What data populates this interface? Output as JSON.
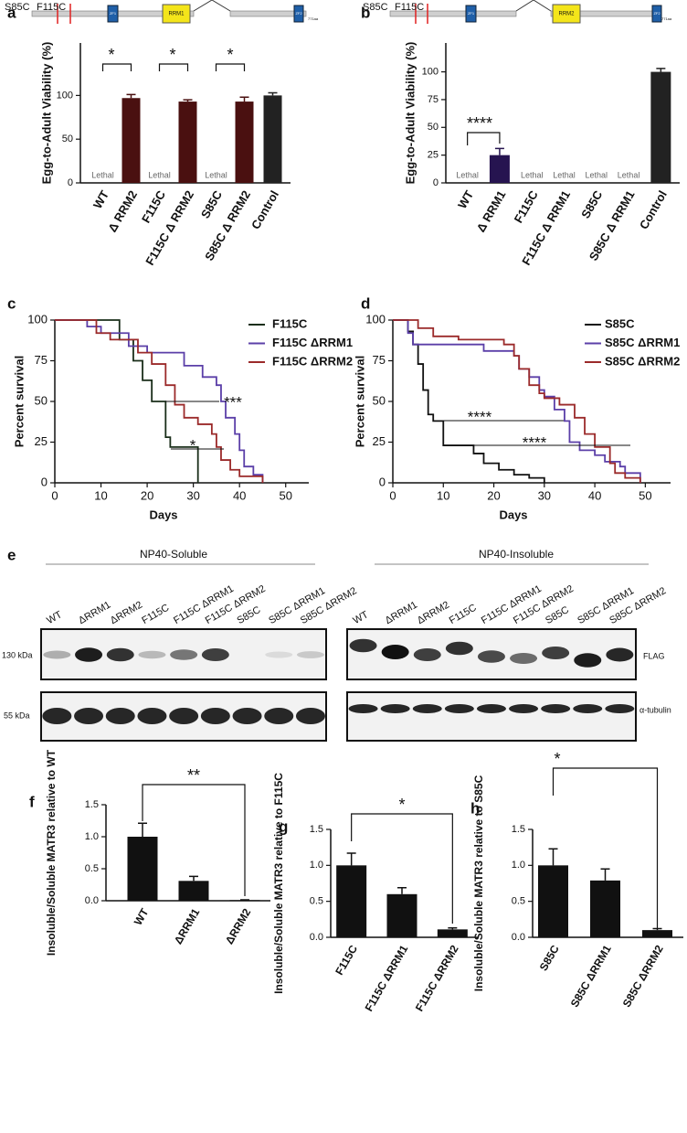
{
  "schematics": [
    {
      "mutations": [
        "S85C",
        "F115C"
      ],
      "domains": [
        "ZF1",
        "RRM1",
        "ZF2"
      ],
      "length": "771aa"
    },
    {
      "mutations": [
        "S85C",
        "F115C"
      ],
      "domains": [
        "ZF1",
        "RRM2",
        "ZF2"
      ],
      "length": "771aa"
    }
  ],
  "blot": {
    "panel": "e",
    "groups": [
      "NP40-Soluble",
      "NP40-Insoluble"
    ],
    "lanes": [
      "WT",
      "ΔRRM1",
      "ΔRRM2",
      "F115C",
      "F115C ΔRRM1",
      "F115C ΔRRM2",
      "S85C",
      "S85C ΔRRM1",
      "S85C ΔRRM2"
    ],
    "markers": [
      "130 kDa",
      "55 kDa"
    ],
    "antibodies": [
      "FLAG",
      "α-tubulin"
    ]
  },
  "chart_data": [
    {
      "panel": "a",
      "type": "bar",
      "ylabel": "Egg-to-Adult Viability (%)",
      "categories": [
        "WT",
        "Δ RRM2",
        "F115C",
        "F115C Δ RRM2",
        "S85C",
        "S85C Δ RRM2",
        "Control"
      ],
      "values": [
        null,
        97,
        null,
        93,
        null,
        93,
        100
      ],
      "errors": [
        null,
        4,
        null,
        2,
        null,
        5,
        3
      ],
      "colors": [
        "#4a1010",
        "#4a1010",
        "#4a1010",
        "#4a1010",
        "#4a1010",
        "#4a1010",
        "#222222"
      ],
      "bar_labels": [
        "Lethal",
        null,
        "Lethal",
        null,
        "Lethal",
        null,
        null
      ],
      "annotations": [
        "*",
        "*",
        "*"
      ],
      "ylim": [
        0,
        160
      ],
      "yticks": [
        0,
        50,
        100
      ]
    },
    {
      "panel": "b",
      "type": "bar",
      "ylabel": "Egg-to-Adult Viability (%)",
      "categories": [
        "WT",
        "Δ RRM1",
        "F115C",
        "F115C Δ RRM1",
        "S85C",
        "S85C Δ RRM1",
        "Control"
      ],
      "values": [
        null,
        25,
        null,
        null,
        null,
        null,
        100
      ],
      "errors": [
        null,
        6,
        null,
        null,
        null,
        null,
        3
      ],
      "colors": [
        "#261450",
        "#261450",
        "#261450",
        "#261450",
        "#261450",
        "#261450",
        "#222222"
      ],
      "bar_labels": [
        "Lethal",
        null,
        "Lethal",
        "Lethal",
        "Lethal",
        "Lethal",
        null
      ],
      "annotations": [
        "****"
      ],
      "ylim": [
        0,
        126
      ],
      "yticks": [
        0,
        25,
        50,
        75,
        100
      ]
    },
    {
      "panel": "c",
      "type": "line",
      "xlabel": "Days",
      "ylabel": "Percent survival",
      "xlim": [
        0,
        55
      ],
      "xticks": [
        0,
        10,
        20,
        30,
        40,
        50
      ],
      "ylim": [
        0,
        100
      ],
      "yticks": [
        0,
        25,
        50,
        75,
        100
      ],
      "legend": "upper right",
      "annotations": [
        "***",
        "*"
      ],
      "series": [
        {
          "name": "F115C",
          "color": "#1a2e1a",
          "x": [
            0,
            14,
            17,
            19,
            21,
            24,
            25,
            31
          ],
          "values": [
            100,
            88,
            75,
            63,
            50,
            28,
            22,
            0
          ]
        },
        {
          "name": "F115C ΔRRM1",
          "color": "#5b3fa8",
          "x": [
            0,
            7,
            10,
            16,
            20,
            28,
            32,
            35,
            36,
            37,
            39,
            40,
            41,
            43,
            45
          ],
          "values": [
            100,
            96,
            92,
            84,
            80,
            72,
            65,
            60,
            50,
            40,
            30,
            20,
            10,
            5,
            0
          ]
        },
        {
          "name": "F115C ΔRRM2",
          "color": "#9b2a2a",
          "x": [
            0,
            9,
            12,
            18,
            21,
            24,
            26,
            28,
            31,
            34,
            35,
            36,
            38,
            40,
            45
          ],
          "values": [
            100,
            92,
            88,
            80,
            73,
            60,
            48,
            40,
            36,
            30,
            22,
            14,
            8,
            4,
            0
          ]
        }
      ]
    },
    {
      "panel": "d",
      "type": "line",
      "xlabel": "Days",
      "ylabel": "Percent survival",
      "xlim": [
        0,
        55
      ],
      "xticks": [
        0,
        10,
        20,
        30,
        40,
        50
      ],
      "ylim": [
        0,
        100
      ],
      "yticks": [
        0,
        25,
        50,
        75,
        100
      ],
      "legend": "upper right",
      "annotations": [
        "****",
        "****"
      ],
      "series": [
        {
          "name": "S85C",
          "color": "#111111",
          "x": [
            0,
            3,
            4,
            5,
            6,
            7,
            8,
            10,
            16,
            18,
            21,
            24,
            27,
            30
          ],
          "values": [
            100,
            93,
            85,
            73,
            57,
            42,
            38,
            23,
            18,
            12,
            8,
            5,
            3,
            0
          ]
        },
        {
          "name": "S85C ΔRRM1",
          "color": "#5b3fa8",
          "x": [
            0,
            3,
            4,
            18,
            24,
            25,
            27,
            29,
            30,
            32,
            34,
            35,
            37,
            40,
            42,
            45,
            46,
            49
          ],
          "values": [
            100,
            92,
            85,
            81,
            78,
            70,
            65,
            57,
            53,
            45,
            38,
            25,
            20,
            17,
            13,
            10,
            6,
            0
          ]
        },
        {
          "name": "S85C ΔRRM2",
          "color": "#9b2a2a",
          "x": [
            0,
            5,
            8,
            13,
            22,
            24,
            25,
            27,
            29,
            30,
            33,
            36,
            38,
            40,
            43,
            44,
            46,
            49
          ],
          "values": [
            100,
            95,
            90,
            88,
            85,
            78,
            70,
            60,
            55,
            52,
            48,
            40,
            30,
            22,
            12,
            6,
            3,
            0
          ]
        }
      ]
    },
    {
      "panel": "f",
      "type": "bar",
      "ylabel": "Insoluble/Soluble MATR3 relative to WT",
      "categories": [
        "WT",
        "ΔRRM1",
        "ΔRRM2"
      ],
      "values": [
        1.0,
        0.31,
        0.01
      ],
      "errors": [
        0.21,
        0.07,
        0.005
      ],
      "colors": [
        "#111111",
        "#111111",
        "#111111"
      ],
      "annotations": [
        "**"
      ],
      "ylim": [
        0,
        1.5
      ],
      "yticks": [
        {
          "value": 0,
          "label": "0.0"
        },
        {
          "value": 0.5,
          "label": "0.5"
        },
        {
          "value": 1,
          "label": "1.0"
        },
        {
          "value": 1.5,
          "label": "1.5"
        }
      ]
    },
    {
      "panel": "g",
      "type": "bar",
      "ylabel": "Insoluble/Soluble MATR3 relative to F115C",
      "categories": [
        "F115C",
        "F115C ΔRRM1",
        "F115C ΔRRM2"
      ],
      "values": [
        1.0,
        0.6,
        0.11
      ],
      "errors": [
        0.17,
        0.09,
        0.02
      ],
      "colors": [
        "#111111",
        "#111111",
        "#111111"
      ],
      "annotations": [
        "*"
      ],
      "ylim": [
        0,
        1.5
      ],
      "yticks": [
        {
          "value": 0,
          "label": "0.0"
        },
        {
          "value": 0.5,
          "label": "0.5"
        },
        {
          "value": 1,
          "label": "1.0"
        },
        {
          "value": 1.5,
          "label": "1.5"
        }
      ]
    },
    {
      "panel": "h",
      "type": "bar",
      "ylabel": "Insoluble/Soluble MATR3 relative to S85C",
      "categories": [
        "S85C",
        "S85C ΔRRM1",
        "S85C ΔRRM2"
      ],
      "values": [
        1.0,
        0.79,
        0.1
      ],
      "errors": [
        0.23,
        0.16,
        0.02
      ],
      "colors": [
        "#111111",
        "#111111",
        "#111111"
      ],
      "annotations": [
        "*"
      ],
      "ylim": [
        0,
        1.5
      ],
      "yticks": [
        {
          "value": 0,
          "label": "0.0"
        },
        {
          "value": 0.5,
          "label": "0.5"
        },
        {
          "value": 1,
          "label": "1.0"
        },
        {
          "value": 1.5,
          "label": "1.5"
        }
      ]
    }
  ]
}
